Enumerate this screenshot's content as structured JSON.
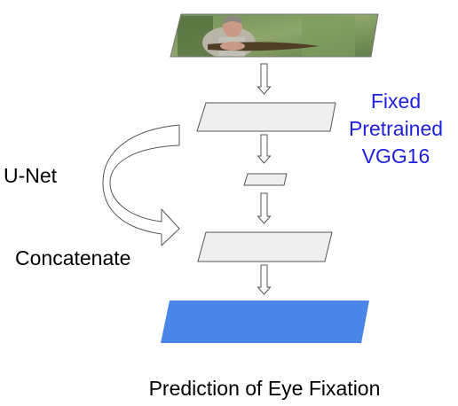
{
  "labels": {
    "fixed_line1": "Fixed",
    "fixed_line2": "Pretrained",
    "fixed_line3": "VGG16",
    "unet": "U-Net",
    "concatenate": "Concatenate",
    "caption": "Prediction of Eye Fixation"
  },
  "icons": {
    "input": "photo-of-person-holding-fish",
    "flow": "down-arrow-icon",
    "skip": "curved-arrow-icon"
  },
  "colors": {
    "vgg_text": "#1f1fe0",
    "output_fill": "#4a86e8",
    "layer_fill": "#efefef",
    "layer_stroke": "#555555",
    "arrow_fill": "#ffffff"
  }
}
